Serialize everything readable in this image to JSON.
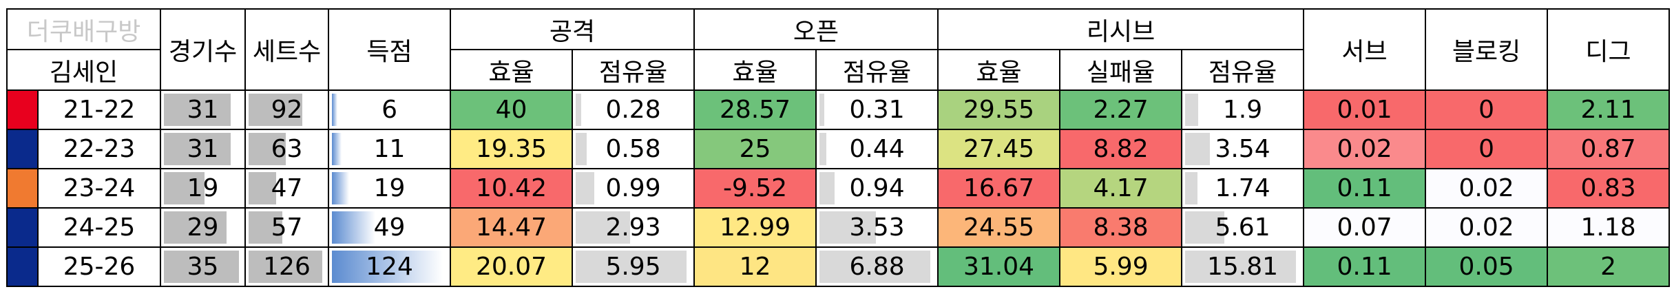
{
  "header": {
    "watermark": "더쿠배구방",
    "player": "김세인",
    "games": "경기수",
    "sets": "세트수",
    "points": "득점",
    "groups": [
      "공격",
      "오픈",
      "리시브"
    ],
    "sub": [
      "효율",
      "점유율",
      "효율",
      "점유율",
      "효율",
      "실패율",
      "점유율"
    ],
    "serve": "서브",
    "block": "블로킹",
    "dig": "디그"
  },
  "table": {
    "rows": [
      [
        "21-22",
        31,
        92,
        6,
        40,
        0.28,
        28.57,
        0.31,
        29.55,
        2.27,
        1.9,
        0.01,
        0,
        2.11
      ],
      [
        "22-23",
        31,
        63,
        11,
        19.35,
        0.58,
        25,
        0.44,
        27.45,
        8.82,
        3.54,
        0.02,
        0,
        0.87
      ],
      [
        "23-24",
        19,
        47,
        19,
        10.42,
        0.99,
        -9.52,
        0.94,
        16.67,
        4.17,
        1.74,
        0.11,
        0.02,
        0.83
      ],
      [
        "24-25",
        29,
        57,
        49,
        14.47,
        2.93,
        12.99,
        3.53,
        24.55,
        8.38,
        5.61,
        0.07,
        0.02,
        1.18
      ],
      [
        "25-26",
        35,
        126,
        124,
        20.07,
        5.95,
        12,
        6.88,
        31.04,
        5.99,
        15.81,
        0.11,
        0.05,
        2
      ]
    ],
    "swatch_colors": [
      "#e8001e",
      "#0a2a8c",
      "#f07a30",
      "#0a2a8c",
      "#0a2a8c"
    ],
    "cell_colors": [
      [
        "#ffffff",
        "#ffffff",
        "#ffffff",
        "#ffffff",
        "#6cc17a",
        "#ffffff",
        "#6cc17a",
        "#ffffff",
        "#a9d27f",
        "#6cc17a",
        "#ffffff",
        "#f8696b",
        "#f8696b",
        "#6cc17a"
      ],
      [
        "#ffffff",
        "#ffffff",
        "#ffffff",
        "#ffffff",
        "#ffeb84",
        "#ffffff",
        "#85c87c",
        "#ffffff",
        "#dce382",
        "#f8696b",
        "#ffffff",
        "#fa8a8c",
        "#f8696b",
        "#f8787a"
      ],
      [
        "#ffffff",
        "#ffffff",
        "#ffffff",
        "#ffffff",
        "#f8696b",
        "#ffffff",
        "#f8696b",
        "#ffffff",
        "#f8696b",
        "#b5d57f",
        "#ffffff",
        "#63be7b",
        "#fcfcff",
        "#f8696b"
      ],
      [
        "#ffffff",
        "#ffffff",
        "#ffffff",
        "#ffffff",
        "#fba877",
        "#ffffff",
        "#ffe884",
        "#ffffff",
        "#fcb679",
        "#f97b6e",
        "#ffffff",
        "#fcfcff",
        "#fcfcff",
        "#fcfcff"
      ],
      [
        "#ffffff",
        "#ffffff",
        "#ffffff",
        "#ffffff",
        "#ffeb84",
        "#ffffff",
        "#fee583",
        "#ffffff",
        "#63be7b",
        "#ffe783",
        "#ffffff",
        "#63be7b",
        "#63be7b",
        "#6dc17a"
      ]
    ],
    "data_bars": [
      {
        "column": 1,
        "color": "#bdbdbd"
      },
      {
        "column": 2,
        "color": "#bdbdbd"
      },
      {
        "column": 3,
        "color": "#5b8bd0"
      },
      {
        "column": 5,
        "color": "#d9d9d9"
      },
      {
        "column": 7,
        "color": "#d9d9d9"
      },
      {
        "column": 10,
        "color": "#d9d9d9"
      }
    ]
  }
}
